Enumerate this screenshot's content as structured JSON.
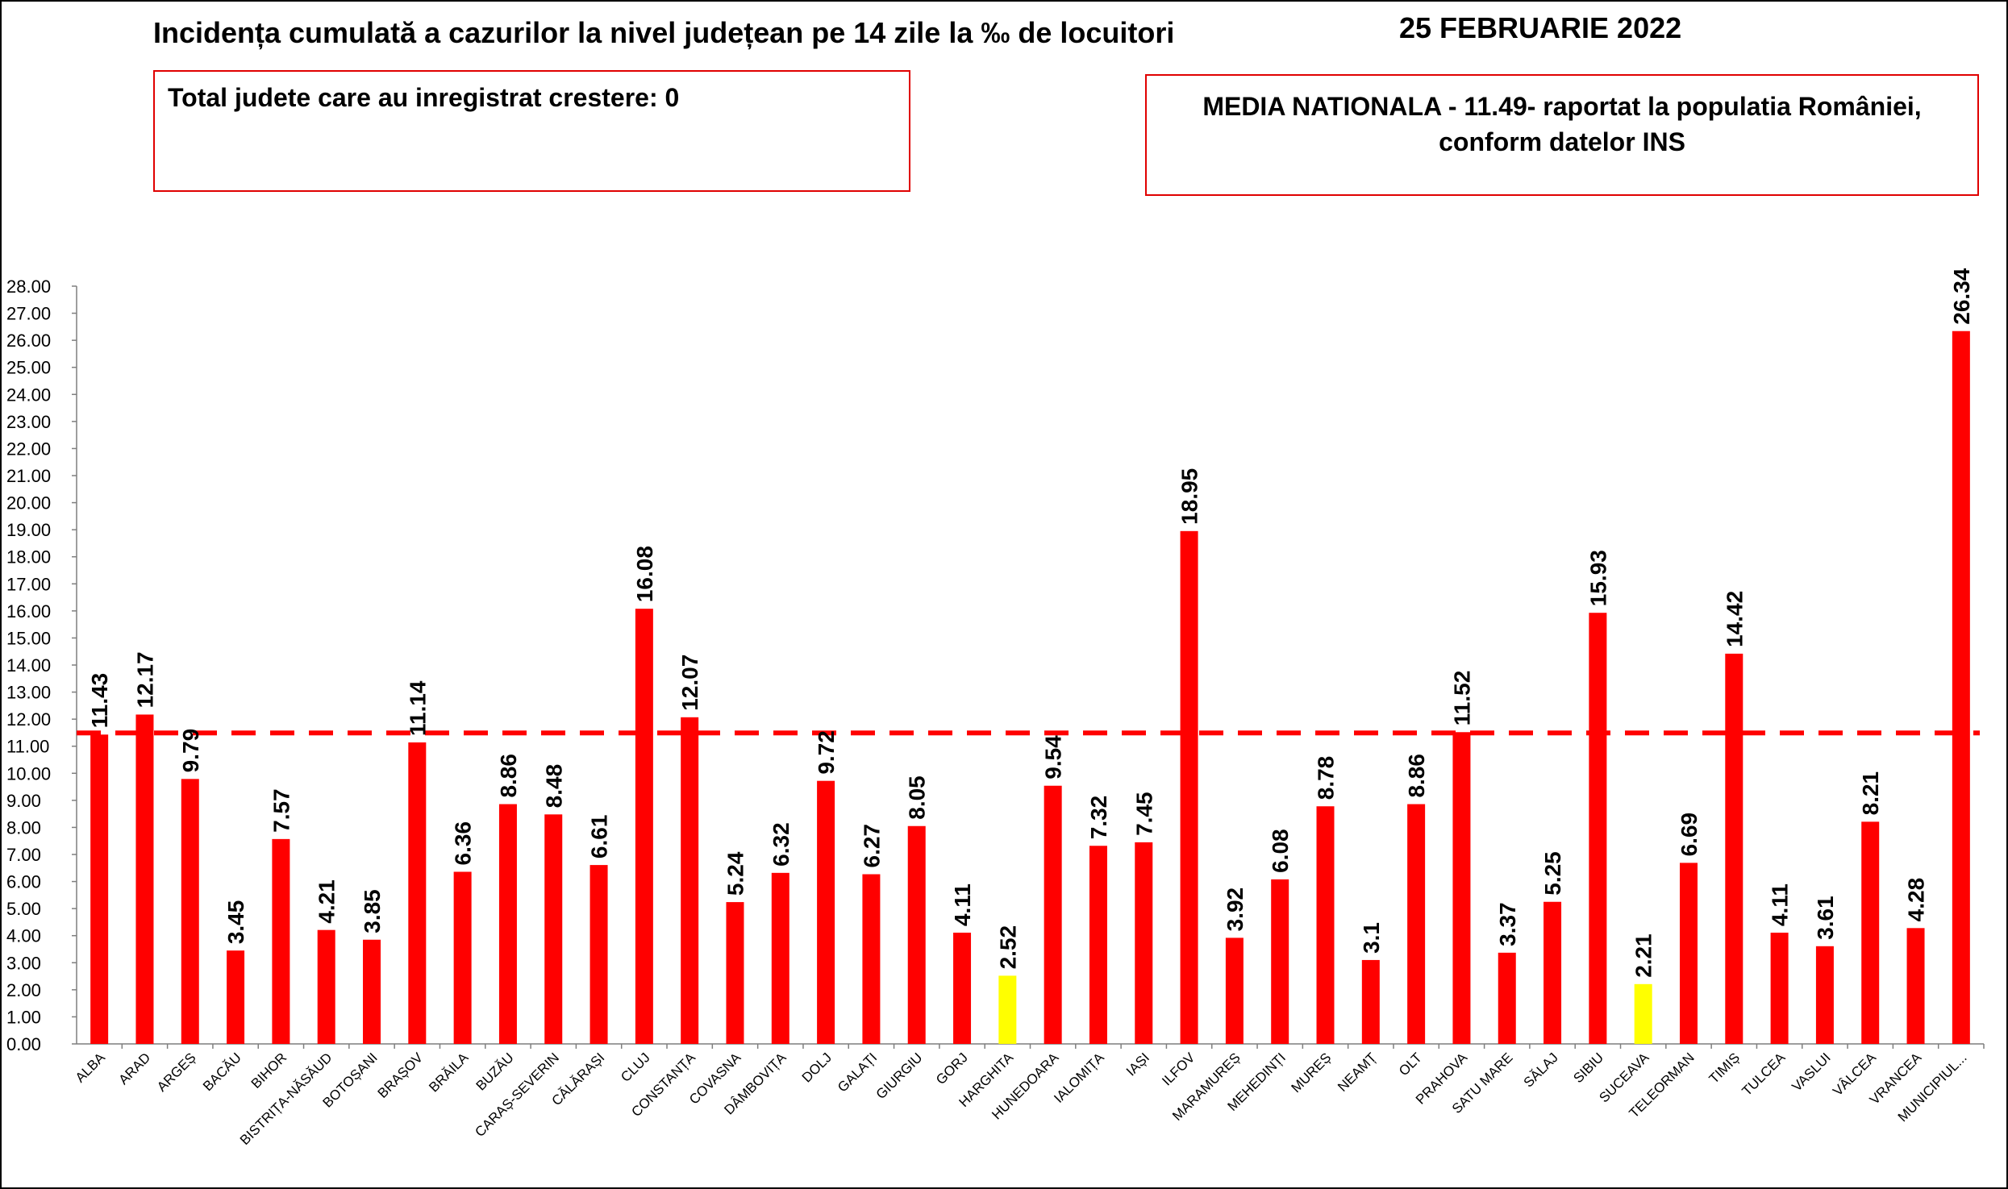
{
  "header": {
    "title": "Incidența cumulată a cazurilor la nivel județean pe 14 zile la ‰ de locuitori",
    "date": "25 FEBRUARIE 2022"
  },
  "info_boxes": {
    "left": "Total judete care au inregistrat crestere: 0",
    "right_line1": "MEDIA NATIONALA - 11.49-  raportat la populatia României,",
    "right_line2": "conform datelor INS"
  },
  "chart_data": {
    "type": "bar",
    "title": "Incidența cumulată a cazurilor la nivel județean pe 14 zile la ‰ de locuitori",
    "categories": [
      "ALBA",
      "ARAD",
      "ARGEȘ",
      "BACĂU",
      "BIHOR",
      "BISTRIȚA-NĂSĂUD",
      "BOTOȘANI",
      "BRAȘOV",
      "BRĂILA",
      "BUZĂU",
      "CARAȘ-SEVERIN",
      "CĂLĂRAȘI",
      "CLUJ",
      "CONSTANȚA",
      "COVASNA",
      "DÂMBOVIȚA",
      "DOLJ",
      "GALAȚI",
      "GIURGIU",
      "GORJ",
      "HARGHITA",
      "HUNEDOARA",
      "IALOMIȚA",
      "IAȘI",
      "ILFOV",
      "MARAMUREȘ",
      "MEHEDINȚI",
      "MUREȘ",
      "NEAMȚ",
      "OLT",
      "PRAHOVA",
      "SATU MARE",
      "SĂLAJ",
      "SIBIU",
      "SUCEAVA",
      "TELEORMAN",
      "TIMIȘ",
      "TULCEA",
      "VASLUI",
      "VÂLCEA",
      "VRANCEA",
      "MUNICIPIUL..."
    ],
    "values": [
      11.43,
      12.17,
      9.79,
      3.45,
      7.57,
      4.21,
      3.85,
      11.14,
      6.36,
      8.86,
      8.48,
      6.61,
      16.08,
      12.07,
      5.24,
      6.32,
      9.72,
      6.27,
      8.05,
      4.11,
      2.52,
      9.54,
      7.32,
      7.45,
      18.95,
      3.92,
      6.08,
      8.78,
      3.1,
      8.86,
      11.52,
      3.37,
      5.25,
      15.93,
      2.21,
      6.69,
      14.42,
      4.11,
      3.61,
      8.21,
      4.28,
      26.34
    ],
    "data_labels": [
      "11.43",
      "12.17",
      "9.79",
      "3.45",
      "7.57",
      "4.21",
      "3.85",
      "11.14",
      "6.36",
      "8.86",
      "8.48",
      "6.61",
      "16.08",
      "12.07",
      "5.24",
      "6.32",
      "9.72",
      "6.27",
      "8.05",
      "4.11",
      "2.52",
      "9.54",
      "7.32",
      "7.45",
      "18.95",
      "3.92",
      "6.08",
      "8.78",
      "3.1",
      "8.86",
      "11.52",
      "3.37",
      "5.25",
      "15.93",
      "2.21",
      "6.69",
      "14.42",
      "4.11",
      "3.61",
      "8.21",
      "4.28",
      "26.34"
    ],
    "highlight_categories": [
      "HARGHITA",
      "SUCEAVA"
    ],
    "reference_line": {
      "value": 11.49,
      "style": "dashed"
    },
    "ylim": [
      0,
      28
    ],
    "y_ticks": [
      "0.00",
      "1.00",
      "2.00",
      "3.00",
      "4.00",
      "5.00",
      "6.00",
      "7.00",
      "8.00",
      "9.00",
      "10.00",
      "11.00",
      "12.00",
      "13.00",
      "14.00",
      "15.00",
      "16.00",
      "17.00",
      "18.00",
      "19.00",
      "20.00",
      "21.00",
      "22.00",
      "23.00",
      "24.00",
      "25.00",
      "26.00",
      "27.00",
      "28.00"
    ],
    "grid": false,
    "legend": "none",
    "colors": {
      "bar": "#ff0000",
      "highlight": "#ffff00",
      "reference_line": "#ff0000",
      "box_border": "#e00000"
    }
  }
}
